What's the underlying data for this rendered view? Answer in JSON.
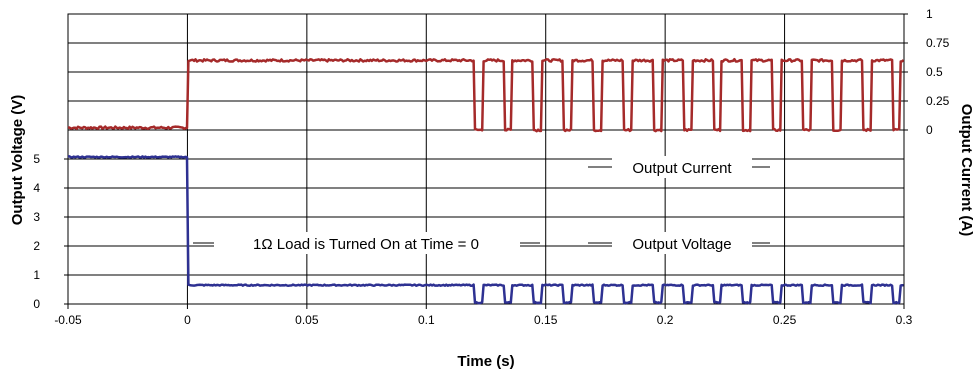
{
  "chart_data": {
    "type": "line",
    "xlabel": "Time (s)",
    "ylabel_left": "Output Voltage (V)",
    "ylabel_right": "Output Current (A)",
    "xlim": [
      -0.05,
      0.3
    ],
    "x_ticks": [
      "-0.05",
      "0",
      "0.05",
      "0.1",
      "0.15",
      "0.2",
      "0.25",
      "0.3"
    ],
    "ylim_left": [
      0,
      10
    ],
    "y_ticks_left": [
      "0",
      "1",
      "2",
      "3",
      "4",
      "5"
    ],
    "ylim_right": [
      -1.5,
      1
    ],
    "y_ticks_right": [
      "0",
      "0.25",
      "0.5",
      "0.75",
      "1"
    ],
    "grid": true,
    "annotations": {
      "current": "Output Current",
      "voltage": "Output Voltage",
      "load": "1Ω Load is Turned On at Time = 0"
    },
    "series": [
      {
        "name": "Output Current",
        "axis": "right",
        "color": "#a52a2a",
        "before_value": 0.02,
        "step_value": 0.6,
        "pulse_start": 0.12,
        "pulse_period": 0.0125,
        "pulse_low_duration": 0.0035,
        "low_value": 0.0,
        "high_value": 0.6
      },
      {
        "name": "Output Voltage",
        "axis": "left",
        "color": "#2e3192",
        "before_value": 5.07,
        "step_value": 0.65,
        "pulse_start": 0.12,
        "pulse_period": 0.0125,
        "pulse_low_duration": 0.0035,
        "low_value": 0.05,
        "high_value": 0.65
      }
    ]
  }
}
